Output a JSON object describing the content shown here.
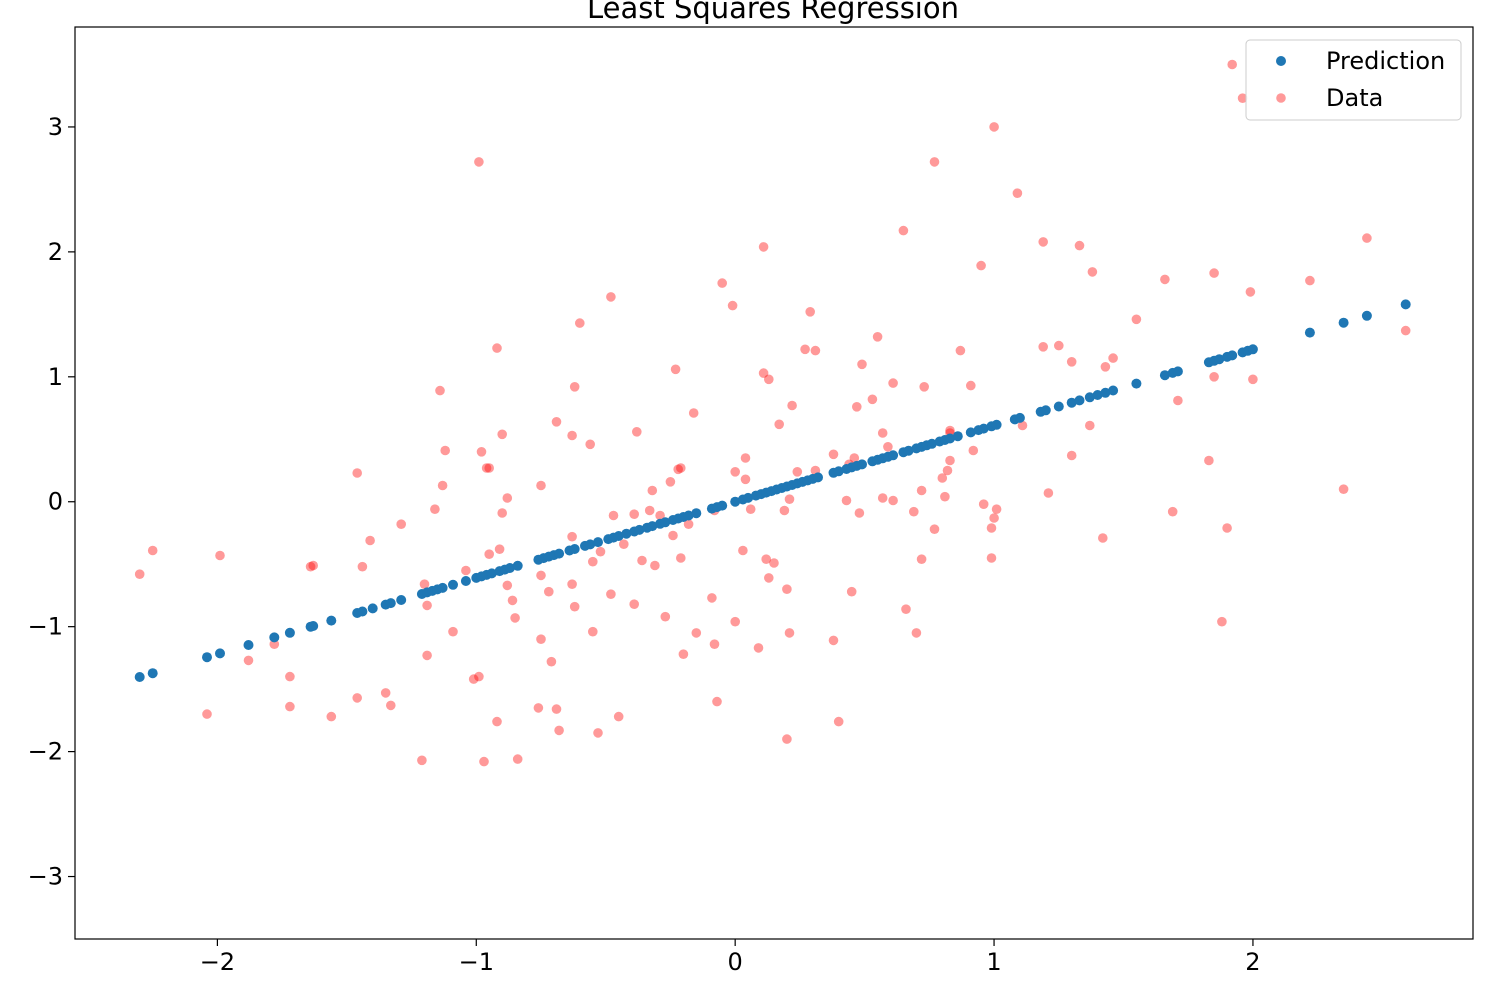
{
  "chart_data": {
    "type": "scatter",
    "title": "Least Squares Regression",
    "xlabel": "",
    "ylabel": "",
    "xlim": [
      -2.55,
      2.85
    ],
    "ylim": [
      -3.5,
      3.8
    ],
    "xticks": [
      -2,
      -1,
      0,
      1,
      2
    ],
    "yticks": [
      -3,
      -2,
      -1,
      0,
      1,
      2,
      3
    ],
    "xtick_labels": [
      "−2",
      "−1",
      "0",
      "1",
      "2"
    ],
    "ytick_labels": [
      "−3",
      "−2",
      "−1",
      "0",
      "1",
      "2",
      "3"
    ],
    "grid": false,
    "legend": {
      "position": "top-right",
      "entries": [
        "Prediction",
        "Data"
      ]
    },
    "series": [
      {
        "name": "Prediction",
        "color": "#1f77b4",
        "alpha": 1.0,
        "fit": {
          "slope": 0.61,
          "intercept": 0.0
        },
        "x": [
          -2.3,
          -2.25,
          -2.04,
          -1.99,
          -1.88,
          -1.78,
          -1.72,
          -1.64,
          -1.63,
          -1.56,
          -1.46,
          -1.44,
          -1.4,
          -1.35,
          -1.33,
          -1.29,
          -1.21,
          -1.19,
          -1.17,
          -1.15,
          -1.13,
          -1.09,
          -1.04,
          -1.0,
          -0.98,
          -0.96,
          -0.94,
          -0.91,
          -0.89,
          -0.87,
          -0.84,
          -0.76,
          -0.74,
          -0.72,
          -0.7,
          -0.68,
          -0.64,
          -0.62,
          -0.58,
          -0.56,
          -0.53,
          -0.49,
          -0.47,
          -0.45,
          -0.42,
          -0.39,
          -0.37,
          -0.34,
          -0.32,
          -0.29,
          -0.27,
          -0.24,
          -0.22,
          -0.2,
          -0.18,
          -0.15,
          -0.09,
          -0.07,
          -0.05,
          0.0,
          0.03,
          0.05,
          0.08,
          0.1,
          0.12,
          0.14,
          0.16,
          0.18,
          0.2,
          0.22,
          0.24,
          0.26,
          0.28,
          0.3,
          0.32,
          0.38,
          0.4,
          0.43,
          0.45,
          0.47,
          0.49,
          0.53,
          0.55,
          0.57,
          0.59,
          0.61,
          0.65,
          0.67,
          0.7,
          0.72,
          0.74,
          0.76,
          0.79,
          0.81,
          0.83,
          0.86,
          0.91,
          0.94,
          0.96,
          0.99,
          1.01,
          1.08,
          1.1,
          1.18,
          1.2,
          1.25,
          1.3,
          1.33,
          1.37,
          1.4,
          1.43,
          1.46,
          1.55,
          1.66,
          1.69,
          1.71,
          1.83,
          1.85,
          1.87,
          1.9,
          1.92,
          1.96,
          1.98,
          2.0,
          2.22,
          2.35,
          2.44,
          2.59
        ]
      },
      {
        "name": "Data",
        "color": "#ff0000",
        "alpha": 0.4,
        "points": [
          [
            -2.3,
            -0.58
          ],
          [
            -2.25,
            -0.39
          ],
          [
            -2.04,
            -1.7
          ],
          [
            -1.99,
            -0.43
          ],
          [
            -1.88,
            -1.27
          ],
          [
            -1.78,
            -1.14
          ],
          [
            -1.72,
            -1.4
          ],
          [
            -1.72,
            -1.64
          ],
          [
            -1.64,
            -0.52
          ],
          [
            -1.63,
            -0.51
          ],
          [
            -1.56,
            -1.72
          ],
          [
            -1.46,
            -1.57
          ],
          [
            -1.46,
            0.23
          ],
          [
            -1.44,
            -0.52
          ],
          [
            -1.41,
            -0.31
          ],
          [
            -1.35,
            -1.53
          ],
          [
            -1.33,
            -1.63
          ],
          [
            -1.29,
            -0.18
          ],
          [
            -1.21,
            -2.07
          ],
          [
            -1.2,
            -0.66
          ],
          [
            -1.19,
            -0.83
          ],
          [
            -1.19,
            -1.23
          ],
          [
            -1.16,
            -0.06
          ],
          [
            -1.14,
            0.89
          ],
          [
            -1.13,
            0.13
          ],
          [
            -1.12,
            0.41
          ],
          [
            -1.09,
            -1.04
          ],
          [
            -1.04,
            -0.55
          ],
          [
            -1.01,
            -1.42
          ],
          [
            -0.99,
            -1.4
          ],
          [
            -0.99,
            2.72
          ],
          [
            -0.98,
            0.4
          ],
          [
            -0.97,
            -2.08
          ],
          [
            -0.96,
            0.27
          ],
          [
            -0.95,
            0.27
          ],
          [
            -0.95,
            -0.42
          ],
          [
            -0.92,
            -1.76
          ],
          [
            -0.92,
            1.23
          ],
          [
            -0.91,
            -0.38
          ],
          [
            -0.9,
            -0.09
          ],
          [
            -0.9,
            0.54
          ],
          [
            -0.88,
            0.03
          ],
          [
            -0.88,
            -0.67
          ],
          [
            -0.86,
            -0.79
          ],
          [
            -0.85,
            -0.93
          ],
          [
            -0.84,
            -2.06
          ],
          [
            -0.76,
            -1.65
          ],
          [
            -0.75,
            0.13
          ],
          [
            -0.75,
            -0.59
          ],
          [
            -0.75,
            -1.1
          ],
          [
            -0.72,
            -0.72
          ],
          [
            -0.71,
            -1.28
          ],
          [
            -0.69,
            0.64
          ],
          [
            -0.69,
            -1.66
          ],
          [
            -0.68,
            -1.83
          ],
          [
            -0.63,
            0.53
          ],
          [
            -0.63,
            -0.28
          ],
          [
            -0.63,
            -0.66
          ],
          [
            -0.62,
            -0.84
          ],
          [
            -0.62,
            0.92
          ],
          [
            -0.6,
            1.43
          ],
          [
            -0.56,
            0.46
          ],
          [
            -0.55,
            -0.48
          ],
          [
            -0.55,
            -1.04
          ],
          [
            -0.53,
            -1.85
          ],
          [
            -0.52,
            -0.4
          ],
          [
            -0.48,
            1.64
          ],
          [
            -0.48,
            -0.74
          ],
          [
            -0.47,
            -0.11
          ],
          [
            -0.45,
            -1.72
          ],
          [
            -0.43,
            -0.34
          ],
          [
            -0.39,
            -0.82
          ],
          [
            -0.39,
            -0.1
          ],
          [
            -0.38,
            0.56
          ],
          [
            -0.36,
            -0.47
          ],
          [
            -0.33,
            -0.07
          ],
          [
            -0.32,
            0.09
          ],
          [
            -0.31,
            -0.51
          ],
          [
            -0.29,
            -0.11
          ],
          [
            -0.27,
            -0.92
          ],
          [
            -0.25,
            0.16
          ],
          [
            -0.24,
            -0.27
          ],
          [
            -0.23,
            1.06
          ],
          [
            -0.22,
            0.26
          ],
          [
            -0.21,
            0.27
          ],
          [
            -0.21,
            -0.45
          ],
          [
            -0.2,
            -1.22
          ],
          [
            -0.18,
            -0.18
          ],
          [
            -0.16,
            0.71
          ],
          [
            -0.15,
            -1.05
          ],
          [
            -0.09,
            -0.77
          ],
          [
            -0.08,
            -1.14
          ],
          [
            -0.08,
            -0.07
          ],
          [
            -0.07,
            -1.6
          ],
          [
            -0.05,
            1.75
          ],
          [
            -0.01,
            1.57
          ],
          [
            0.0,
            0.24
          ],
          [
            0.0,
            -0.96
          ],
          [
            0.03,
            -0.39
          ],
          [
            0.04,
            0.18
          ],
          [
            0.04,
            0.35
          ],
          [
            0.06,
            -0.06
          ],
          [
            0.09,
            -1.17
          ],
          [
            0.11,
            2.04
          ],
          [
            0.11,
            1.03
          ],
          [
            0.12,
            -0.46
          ],
          [
            0.13,
            0.98
          ],
          [
            0.13,
            -0.61
          ],
          [
            0.15,
            -0.49
          ],
          [
            0.17,
            0.62
          ],
          [
            0.19,
            -0.07
          ],
          [
            0.2,
            -0.7
          ],
          [
            0.2,
            -1.9
          ],
          [
            0.21,
            0.02
          ],
          [
            0.21,
            -1.05
          ],
          [
            0.22,
            0.77
          ],
          [
            0.24,
            0.24
          ],
          [
            0.27,
            1.22
          ],
          [
            0.29,
            1.52
          ],
          [
            0.31,
            0.25
          ],
          [
            0.31,
            1.21
          ],
          [
            0.38,
            0.38
          ],
          [
            0.38,
            -1.11
          ],
          [
            0.4,
            -1.76
          ],
          [
            0.43,
            0.01
          ],
          [
            0.44,
            0.3
          ],
          [
            0.45,
            -0.72
          ],
          [
            0.46,
            0.35
          ],
          [
            0.47,
            0.76
          ],
          [
            0.48,
            -0.09
          ],
          [
            0.49,
            1.1
          ],
          [
            0.53,
            0.82
          ],
          [
            0.55,
            1.32
          ],
          [
            0.57,
            0.55
          ],
          [
            0.57,
            0.03
          ],
          [
            0.59,
            0.44
          ],
          [
            0.61,
            0.01
          ],
          [
            0.61,
            0.95
          ],
          [
            0.65,
            2.17
          ],
          [
            0.66,
            -0.86
          ],
          [
            0.69,
            -0.08
          ],
          [
            0.7,
            -1.05
          ],
          [
            0.72,
            0.09
          ],
          [
            0.72,
            -0.46
          ],
          [
            0.73,
            0.92
          ],
          [
            0.77,
            2.72
          ],
          [
            0.77,
            -0.22
          ],
          [
            0.8,
            0.19
          ],
          [
            0.81,
            0.04
          ],
          [
            0.82,
            0.25
          ],
          [
            0.83,
            0.33
          ],
          [
            0.83,
            0.57
          ],
          [
            0.83,
            0.55
          ],
          [
            0.87,
            1.21
          ],
          [
            0.91,
            0.93
          ],
          [
            0.92,
            0.41
          ],
          [
            0.95,
            1.89
          ],
          [
            0.96,
            -0.02
          ],
          [
            0.99,
            -0.21
          ],
          [
            0.99,
            -0.45
          ],
          [
            1.0,
            -0.13
          ],
          [
            1.0,
            3.0
          ],
          [
            1.01,
            -0.06
          ],
          [
            1.09,
            2.47
          ],
          [
            1.11,
            0.61
          ],
          [
            1.19,
            1.24
          ],
          [
            1.19,
            2.08
          ],
          [
            1.21,
            0.07
          ],
          [
            1.25,
            1.25
          ],
          [
            1.3,
            0.37
          ],
          [
            1.3,
            1.12
          ],
          [
            1.33,
            2.05
          ],
          [
            1.37,
            0.61
          ],
          [
            1.38,
            1.84
          ],
          [
            1.42,
            -0.29
          ],
          [
            1.43,
            1.08
          ],
          [
            1.46,
            1.15
          ],
          [
            1.55,
            1.46
          ],
          [
            1.66,
            1.78
          ],
          [
            1.69,
            -0.08
          ],
          [
            1.71,
            0.81
          ],
          [
            1.83,
            0.33
          ],
          [
            1.85,
            1.0
          ],
          [
            1.85,
            1.83
          ],
          [
            1.88,
            -0.96
          ],
          [
            1.9,
            -0.21
          ],
          [
            1.92,
            3.5
          ],
          [
            1.96,
            3.23
          ],
          [
            1.99,
            1.68
          ],
          [
            2.0,
            0.98
          ],
          [
            2.22,
            1.77
          ],
          [
            2.35,
            0.1
          ],
          [
            2.44,
            2.11
          ],
          [
            2.59,
            1.37
          ]
        ]
      }
    ]
  }
}
